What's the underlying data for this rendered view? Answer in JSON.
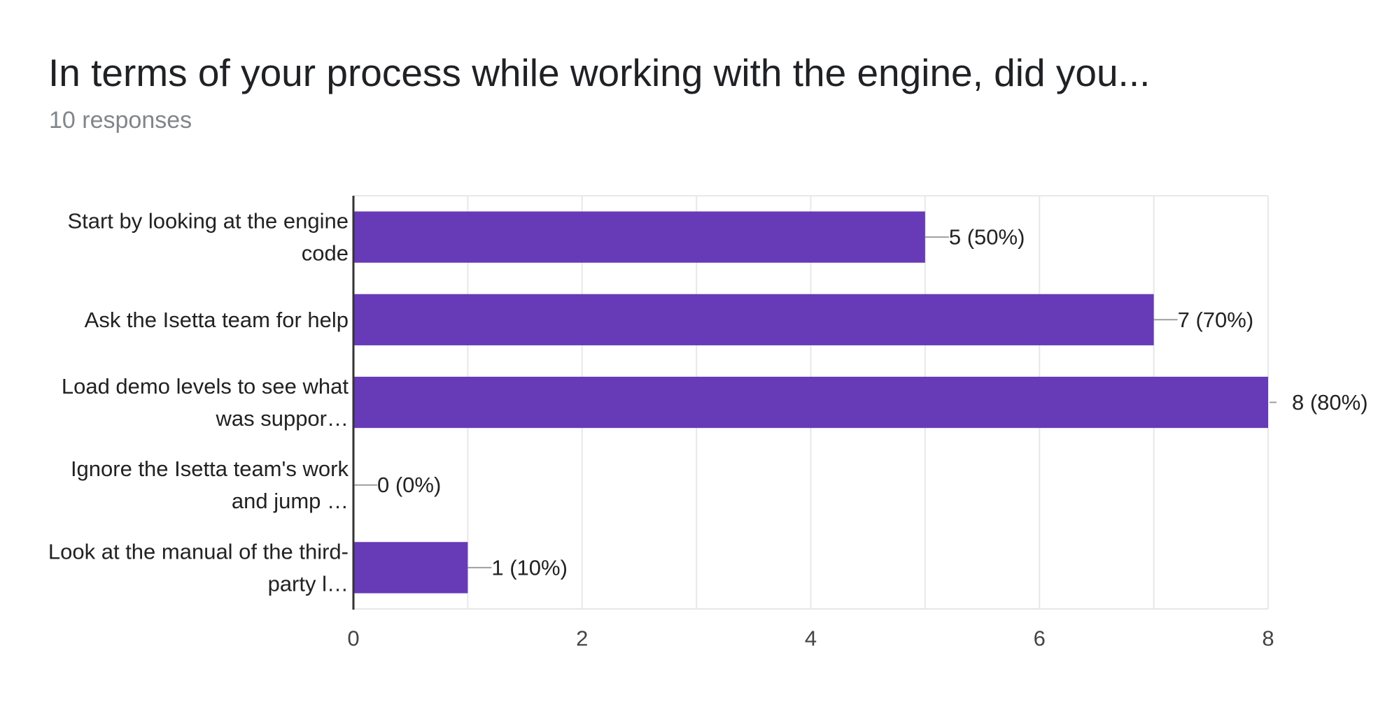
{
  "header": {
    "title": "In terms of your process while working with the engine, did you...",
    "subtitle": "10 responses"
  },
  "chart_data": {
    "type": "bar",
    "orientation": "horizontal",
    "title": "In terms of your process while working with the engine, did you...",
    "subtitle": "10 responses",
    "categories": [
      [
        "Start by looking at the engine",
        "code"
      ],
      [
        "Ask the Isetta team for help"
      ],
      [
        "Load demo levels to see what",
        "was suppor…"
      ],
      [
        "Ignore the Isetta team's work",
        "and jump …"
      ],
      [
        "Look at the manual of the third-",
        "party l…"
      ]
    ],
    "values": [
      5,
      7,
      8,
      0,
      1
    ],
    "data_labels": [
      "5 (50%)",
      "7 (70%)",
      "8 (80%)",
      "0 (0%)",
      "1 (10%)"
    ],
    "xlim": [
      0,
      8
    ],
    "x_ticks": [
      0,
      2,
      4,
      6,
      8
    ],
    "grid": true,
    "legend": "none",
    "bar_color": "#673ab7",
    "grid_color": "#e8e8e8",
    "axis_color": "#333333",
    "leader_color": "#9e9e9e"
  }
}
